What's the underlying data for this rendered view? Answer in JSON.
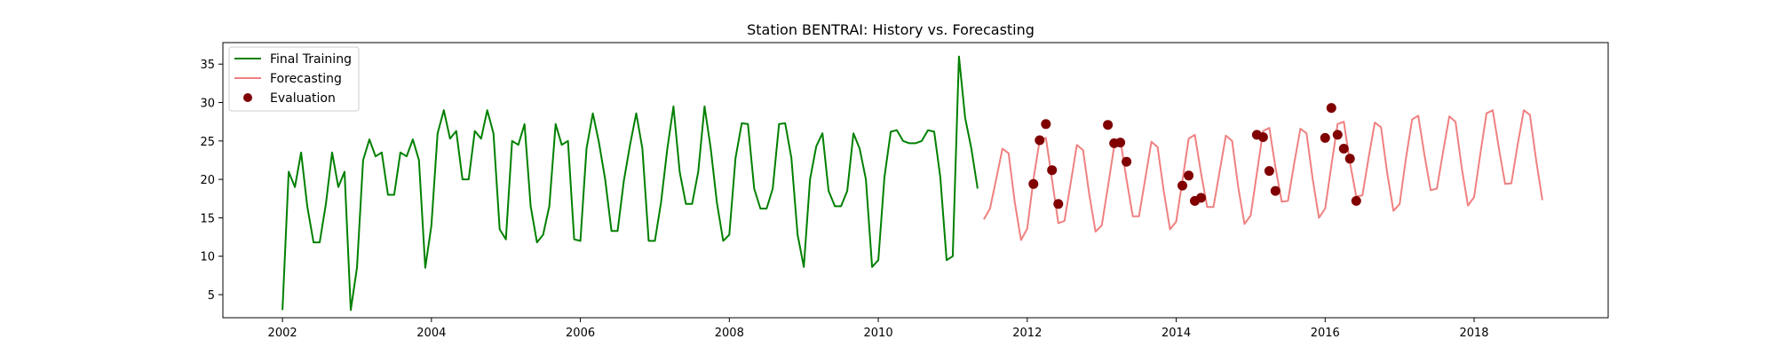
{
  "chart_data": {
    "type": "line",
    "title": "Station BENTRAI: History vs. Forecasting",
    "xlabel": "",
    "ylabel": "",
    "xlim": [
      2001.2,
      2019.8
    ],
    "ylim": [
      2.0,
      37.8
    ],
    "xticks": [
      2002,
      2004,
      2006,
      2008,
      2010,
      2012,
      2014,
      2016,
      2018
    ],
    "yticks": [
      5,
      10,
      15,
      20,
      25,
      30,
      35
    ],
    "grid": false,
    "legend_position": "top-left",
    "series": [
      {
        "name": "Final Training",
        "type": "line",
        "color": "#008000",
        "x": [
          2002.0,
          2002.083,
          2002.167,
          2002.25,
          2002.333,
          2002.417,
          2002.5,
          2002.583,
          2002.667,
          2002.75,
          2002.833,
          2002.917,
          2003.0,
          2003.083,
          2003.167,
          2003.25,
          2003.333,
          2003.417,
          2003.5,
          2003.583,
          2003.667,
          2003.75,
          2003.833,
          2003.917,
          2004.0,
          2004.083,
          2004.167,
          2004.25,
          2004.333,
          2004.417,
          2004.5,
          2004.583,
          2004.667,
          2004.75,
          2004.833,
          2004.917,
          2005.0,
          2005.083,
          2005.167,
          2005.25,
          2005.333,
          2005.417,
          2005.5,
          2005.583,
          2005.667,
          2005.75,
          2005.833,
          2005.917,
          2006.0,
          2006.083,
          2006.167,
          2006.25,
          2006.333,
          2006.417,
          2006.5,
          2006.583,
          2006.667,
          2006.75,
          2006.833,
          2006.917,
          2007.0,
          2007.083,
          2007.167,
          2007.25,
          2007.333,
          2007.417,
          2007.5,
          2007.583,
          2007.667,
          2007.75,
          2007.833,
          2007.917,
          2008.0,
          2008.083,
          2008.167,
          2008.25,
          2008.333,
          2008.417,
          2008.5,
          2008.583,
          2008.667,
          2008.75,
          2008.833,
          2008.917,
          2009.0,
          2009.083,
          2009.167,
          2009.25,
          2009.333,
          2009.417,
          2009.5,
          2009.583,
          2009.667,
          2009.75,
          2009.833,
          2009.917,
          2010.0,
          2010.083,
          2010.167,
          2010.25,
          2010.333,
          2010.417,
          2010.5,
          2010.583,
          2010.667,
          2010.75,
          2010.833,
          2010.917,
          2011.0,
          2011.083,
          2011.167,
          2011.25,
          2011.333
        ],
        "y": [
          3.0,
          21.0,
          19.0,
          23.5,
          16.5,
          11.8,
          11.8,
          16.8,
          23.5,
          19.0,
          21.0,
          3.0,
          8.5,
          22.5,
          25.2,
          23.0,
          23.5,
          18.0,
          18.0,
          23.5,
          23.0,
          25.2,
          22.5,
          8.5,
          14.0,
          26.0,
          29.0,
          25.3,
          26.3,
          20.0,
          20.0,
          26.3,
          25.3,
          29.0,
          26.0,
          13.5,
          12.2,
          25.0,
          24.5,
          27.2,
          16.5,
          11.8,
          12.8,
          16.5,
          27.2,
          24.5,
          25.0,
          12.2,
          12.0,
          24.0,
          28.6,
          24.8,
          20.0,
          13.3,
          13.3,
          19.8,
          24.5,
          28.6,
          24.0,
          12.0,
          12.0,
          17.0,
          24.0,
          29.5,
          21.0,
          16.8,
          16.8,
          21.0,
          29.5,
          24.0,
          17.0,
          12.0,
          12.8,
          22.8,
          27.3,
          27.2,
          18.8,
          16.2,
          16.2,
          18.8,
          27.2,
          27.3,
          22.8,
          12.8,
          8.6,
          20.0,
          24.3,
          26.0,
          18.5,
          16.5,
          16.5,
          18.5,
          26.0,
          24.0,
          20.0,
          8.6,
          9.5,
          20.3,
          26.2,
          26.4,
          25.0,
          24.7,
          24.7,
          25.0,
          26.4,
          26.2,
          20.3,
          9.5,
          10.0,
          36.0,
          28.0,
          24.0,
          18.8
        ]
      },
      {
        "name": "Forecasting",
        "type": "line",
        "color": "#f08080",
        "x": [
          2011.417,
          2011.5,
          2011.583,
          2011.667,
          2011.75,
          2011.833,
          2011.917,
          2012.0,
          2012.083,
          2012.167,
          2012.25,
          2012.333,
          2012.417,
          2012.5,
          2012.583,
          2012.667,
          2012.75,
          2012.833,
          2012.917,
          2013.0,
          2013.083,
          2013.167,
          2013.25,
          2013.333,
          2013.417,
          2013.5,
          2013.583,
          2013.667,
          2013.75,
          2013.833,
          2013.917,
          2014.0,
          2014.083,
          2014.167,
          2014.25,
          2014.333,
          2014.417,
          2014.5,
          2014.583,
          2014.667,
          2014.75,
          2014.833,
          2014.917,
          2015.0,
          2015.083,
          2015.167,
          2015.25,
          2015.333,
          2015.417,
          2015.5,
          2015.583,
          2015.667,
          2015.75,
          2015.833,
          2015.917,
          2016.0,
          2016.083,
          2016.167,
          2016.25,
          2016.333,
          2016.417,
          2016.5,
          2016.583,
          2016.667,
          2016.75,
          2016.833,
          2016.917,
          2017.0,
          2017.083,
          2017.167,
          2017.25,
          2017.333,
          2017.417,
          2017.5,
          2017.583,
          2017.667,
          2017.75,
          2017.833,
          2017.917,
          2018.0,
          2018.083,
          2018.167,
          2018.25,
          2018.333,
          2018.417,
          2018.5,
          2018.583,
          2018.667,
          2018.75,
          2018.833,
          2018.917
        ],
        "y": [
          14.8,
          16.2,
          20.0,
          24.0,
          23.4,
          17.0,
          12.1,
          13.6,
          20.0,
          25.1,
          25.4,
          20.0,
          14.3,
          14.6,
          19.5,
          24.5,
          23.8,
          18.0,
          13.2,
          14.0,
          19.0,
          24.3,
          25.2,
          20.0,
          15.2,
          15.2,
          20.0,
          24.9,
          24.2,
          18.5,
          13.5,
          14.5,
          19.8,
          25.3,
          25.8,
          20.8,
          16.4,
          16.4,
          21.0,
          25.7,
          25.0,
          19.0,
          14.2,
          15.3,
          20.8,
          26.3,
          26.7,
          21.6,
          17.1,
          17.2,
          22.0,
          26.6,
          26.0,
          20.0,
          15.0,
          16.2,
          21.8,
          27.2,
          27.5,
          22.2,
          17.8,
          17.9,
          22.8,
          27.4,
          26.8,
          20.8,
          15.9,
          16.8,
          22.6,
          27.8,
          28.3,
          23.2,
          18.6,
          18.8,
          23.6,
          28.2,
          27.5,
          21.6,
          16.6,
          17.7,
          23.3,
          28.6,
          29.0,
          24.0,
          19.4,
          19.5,
          24.4,
          29.0,
          28.4,
          22.5,
          17.3
        ]
      },
      {
        "name": "Evaluation",
        "type": "scatter",
        "color": "#800000",
        "x": [
          2012.083,
          2012.167,
          2012.25,
          2012.333,
          2012.417,
          2013.083,
          2013.167,
          2013.25,
          2013.333,
          2014.083,
          2014.167,
          2014.25,
          2014.333,
          2015.083,
          2015.167,
          2015.25,
          2015.333,
          2016.0,
          2016.083,
          2016.167,
          2016.25,
          2016.333,
          2016.417
        ],
        "y": [
          19.4,
          25.1,
          27.2,
          21.2,
          16.8,
          27.1,
          24.7,
          24.8,
          22.3,
          19.2,
          20.5,
          17.2,
          17.6,
          25.8,
          25.5,
          21.1,
          18.5,
          25.4,
          29.3,
          25.8,
          24.0,
          22.7,
          17.2
        ]
      }
    ]
  }
}
